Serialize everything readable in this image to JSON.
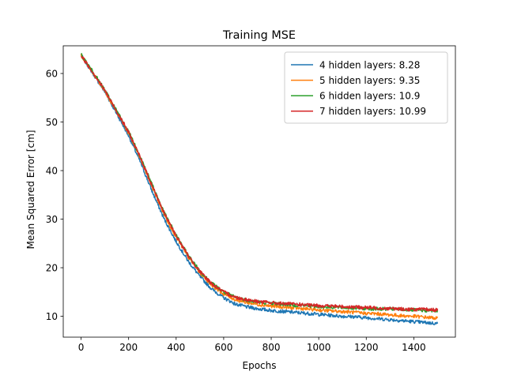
{
  "chart_data": {
    "type": "line",
    "title": "Training MSE",
    "xlabel": "Epochs",
    "ylabel": "Mean Squared Error [cm]",
    "xlim": [
      -75,
      1575
    ],
    "ylim": [
      5.7,
      65.7
    ],
    "xticks": [
      0,
      200,
      400,
      600,
      800,
      1000,
      1200,
      1400
    ],
    "yticks": [
      10,
      20,
      30,
      40,
      50,
      60
    ],
    "grid": false,
    "legend_position": "top-right",
    "x": [
      0,
      50,
      100,
      150,
      200,
      250,
      300,
      350,
      400,
      450,
      500,
      550,
      600,
      650,
      700,
      750,
      800,
      850,
      900,
      950,
      1000,
      1050,
      1100,
      1150,
      1200,
      1250,
      1300,
      1350,
      1400,
      1450,
      1500
    ],
    "series": [
      {
        "name": "4 hidden layers: 8.28",
        "color": "#1f77b4",
        "values": [
          63.8,
          60.0,
          56.2,
          51.7,
          47.2,
          41.7,
          35.6,
          30.0,
          25.4,
          21.4,
          18.2,
          15.6,
          13.8,
          12.5,
          11.9,
          11.5,
          11.2,
          11.0,
          10.8,
          10.6,
          10.4,
          10.2,
          10.0,
          9.9,
          9.7,
          9.5,
          9.3,
          9.1,
          8.9,
          8.7,
          8.5
        ]
      },
      {
        "name": "5 hidden layers: 9.35",
        "color": "#ff7f0e",
        "values": [
          63.8,
          60.1,
          56.4,
          52.1,
          47.7,
          42.4,
          36.5,
          30.9,
          26.3,
          22.2,
          19.0,
          16.4,
          14.6,
          13.4,
          12.8,
          12.4,
          12.1,
          11.9,
          11.7,
          11.5,
          11.3,
          11.1,
          11.0,
          10.8,
          10.6,
          10.5,
          10.3,
          10.1,
          10.0,
          9.8,
          9.6
        ]
      },
      {
        "name": "6 hidden layers: 10.9",
        "color": "#2ca02c",
        "values": [
          63.9,
          60.3,
          56.6,
          52.3,
          48.0,
          42.8,
          37.0,
          31.3,
          26.7,
          22.6,
          19.3,
          16.8,
          15.0,
          13.9,
          13.3,
          12.9,
          12.7,
          12.5,
          12.3,
          12.2,
          12.0,
          11.9,
          11.8,
          11.7,
          11.6,
          11.5,
          11.5,
          11.4,
          11.3,
          11.2,
          11.1
        ]
      },
      {
        "name": "7 hidden layers: 10.99",
        "color": "#d62728",
        "values": [
          63.7,
          60.2,
          56.5,
          52.2,
          47.9,
          42.6,
          36.8,
          31.2,
          26.6,
          22.5,
          19.2,
          16.7,
          15.0,
          13.9,
          13.4,
          13.0,
          12.8,
          12.6,
          12.5,
          12.3,
          12.2,
          12.1,
          12.0,
          11.9,
          11.8,
          11.7,
          11.6,
          11.5,
          11.4,
          11.4,
          11.3
        ]
      }
    ]
  }
}
